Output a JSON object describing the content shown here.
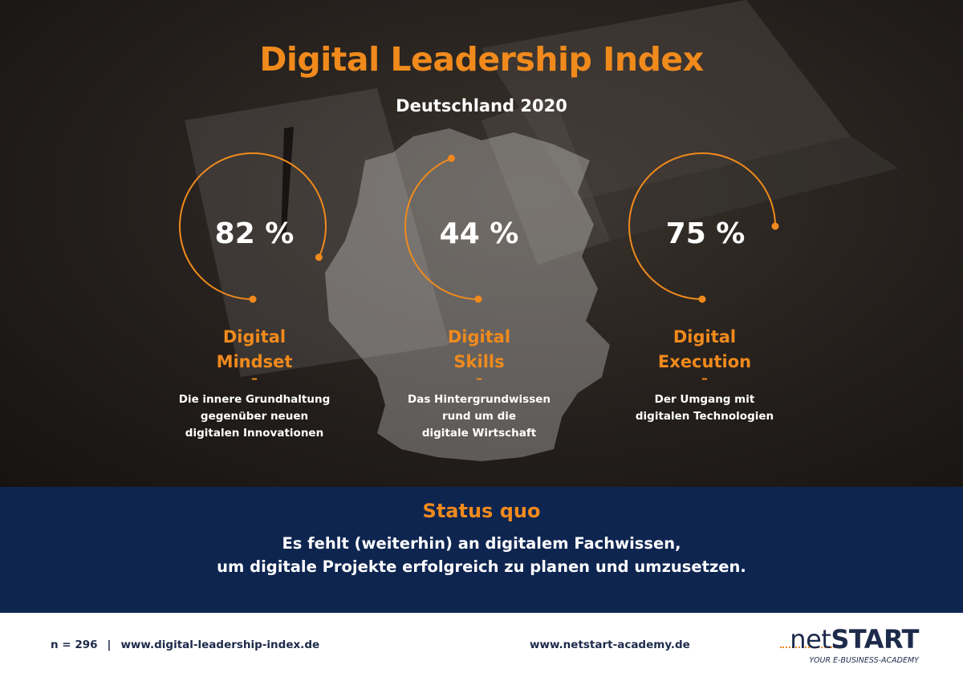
{
  "colors": {
    "accent": "#f08a1c",
    "white": "#ffffff",
    "navy": "#0e2550",
    "footer_text": "#1d2a4a"
  },
  "header": {
    "title": "Digital Leadership Index",
    "subtitle": "Deutschland 2020"
  },
  "chart_data": {
    "type": "radial",
    "unit": "%",
    "categories": [
      "Digital Mindset",
      "Digital Skills",
      "Digital Execution"
    ],
    "values": [
      82,
      44,
      75
    ],
    "ylim": [
      0,
      100
    ]
  },
  "metrics": [
    {
      "value_label": "82 %",
      "name_lines": [
        "Digital",
        "Mindset"
      ],
      "dash": "–",
      "description_lines": [
        "Die innere Grundhaltung",
        "gegenüber neuen",
        "digitalen Innovationen"
      ]
    },
    {
      "value_label": "44 %",
      "name_lines": [
        "Digital",
        "Skills"
      ],
      "dash": "–",
      "description_lines": [
        "Das Hintergrundwissen",
        "rund um die",
        "digitale Wirtschaft"
      ]
    },
    {
      "value_label": "75 %",
      "name_lines": [
        "Digital",
        "Execution"
      ],
      "dash": "–",
      "description_lines": [
        "Der Umgang mit",
        "digitalen Technologien"
      ]
    }
  ],
  "status": {
    "title": "Status quo",
    "lines": [
      "Es fehlt (weiterhin) an digitalem Fachwissen,",
      "um digitale Projekte erfolgreich zu planen und umzusetzen."
    ]
  },
  "footer": {
    "sample": "n = 296",
    "separator": "|",
    "link_index": "www.digital-leadership-index.de",
    "link_academy": "www.netstart-academy.de"
  },
  "logo": {
    "net": "net",
    "start": "START",
    "tagline": "YOUR E-BUSINESS-ACADEMY"
  }
}
